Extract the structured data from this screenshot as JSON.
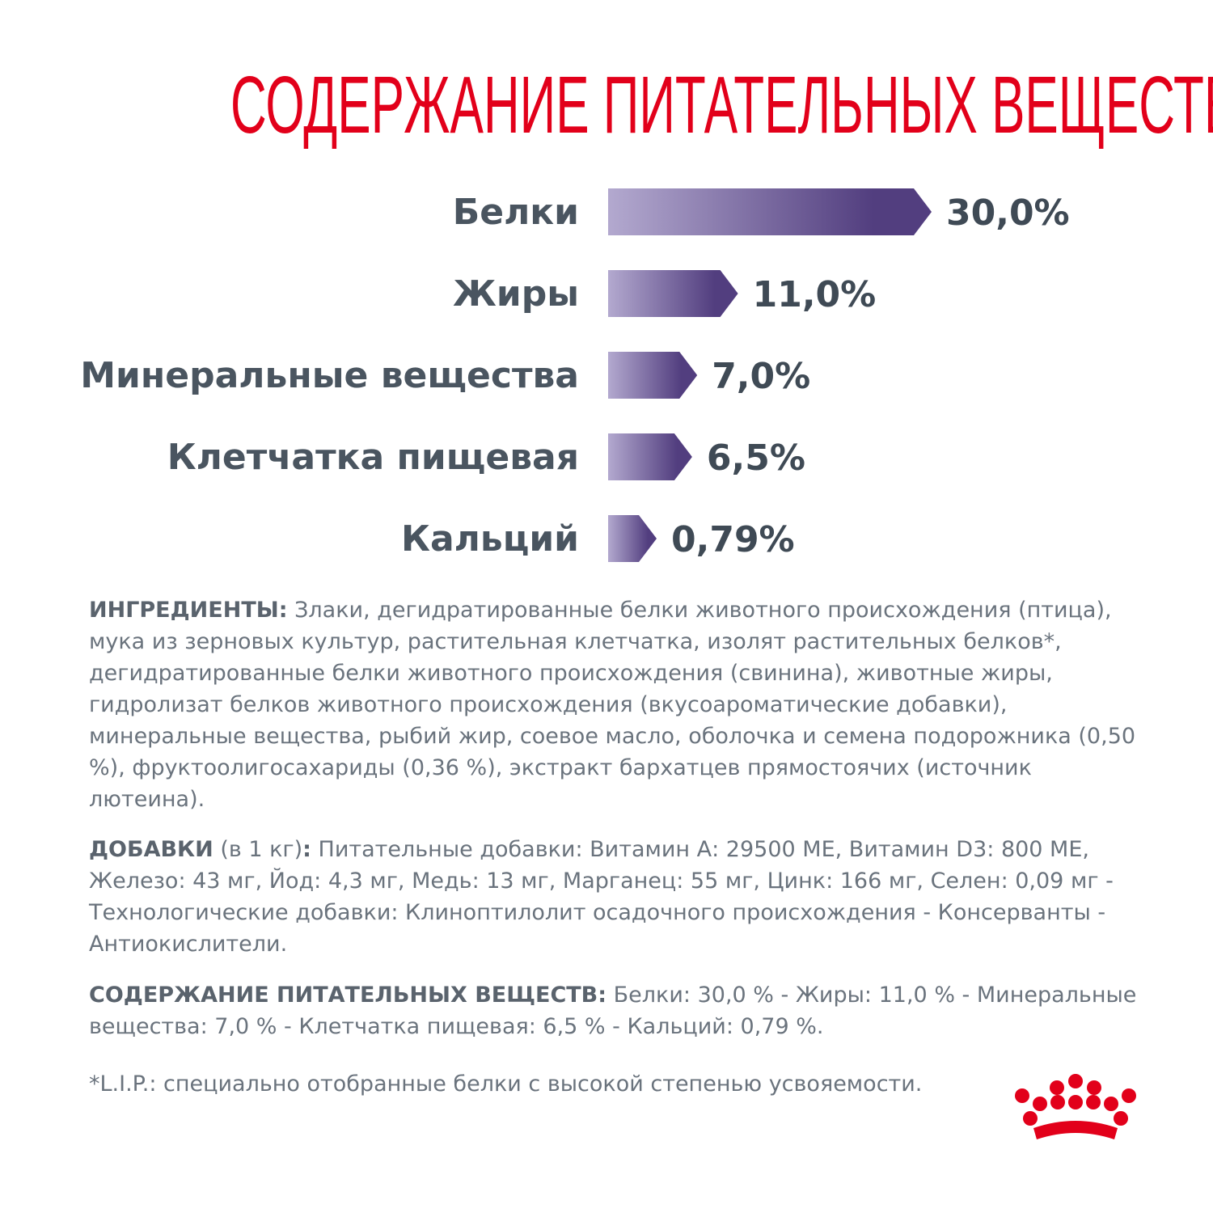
{
  "title": "СОДЕРЖАНИЕ ПИТАТЕЛЬНЫХ ВЕЩЕСТВ",
  "colors": {
    "title": "#e2001a",
    "bar_light": "#b3a9cf",
    "bar_dark": "#523e7f",
    "logo": "#e2001a"
  },
  "chart_data": {
    "type": "bar",
    "orientation": "horizontal",
    "categories": [
      "Белки",
      "Жиры",
      "Минеральные вещества",
      "Клетчатка пищевая",
      "Кальций"
    ],
    "values": [
      30.0,
      11.0,
      7.0,
      6.5,
      0.79
    ],
    "value_labels": [
      "30,0%",
      "11,0%",
      "7,0%",
      "6,5%",
      "0,79%"
    ],
    "unit": "%",
    "title": "",
    "xlabel": "",
    "ylabel": "",
    "grid": false,
    "legend": "none"
  },
  "ingredients": {
    "head": "ИНГРЕДИЕНТЫ:",
    "text": " Злаки, дегидратированные белки животного происхождения (птица), мука из зерновых культур, растительная клетчатка, изолят растительных белков*, дегидратированные белки животного происхождения (свинина), животные жиры, гидролизат белков животного происхождения (вкусоароматические добавки), минеральные вещества, рыбий жир, соевое масло, оболочка и семена подорожника (0,50 %), фруктоолигосахариды (0,36 %), экстракт бархатцев прямостоячих (источник лютеина)."
  },
  "additives": {
    "head": "ДОБАВКИ",
    "sub": " (в 1 кг)",
    "colon": ":",
    "text": " Питательные добавки: Витамин А: 29500 МЕ, Витамин D3: 800 МЕ, Железо: 43 мг, Йод: 4,3 мг, Медь: 13 мг, Марганец: 55 мг, Цинк: 166 мг, Селен: 0,09 мг - Технологические добавки: Клиноптилолит осадочного происхождения - Консерванты - Антиокислители."
  },
  "nutrients": {
    "head": "СОДЕРЖАНИЕ ПИТАТЕЛЬНЫХ ВЕЩЕСТВ:",
    "text": " Белки: 30,0 % - Жиры: 11,0 % - Минеральные вещества: 7,0 % - Клетчатка пищевая: 6,5 % - Кальций: 0,79 %."
  },
  "footnote": "*L.I.P.: специально отобранные белки с высокой степенью усвояемости.",
  "logo_icon": "royal-canin-crown-icon"
}
